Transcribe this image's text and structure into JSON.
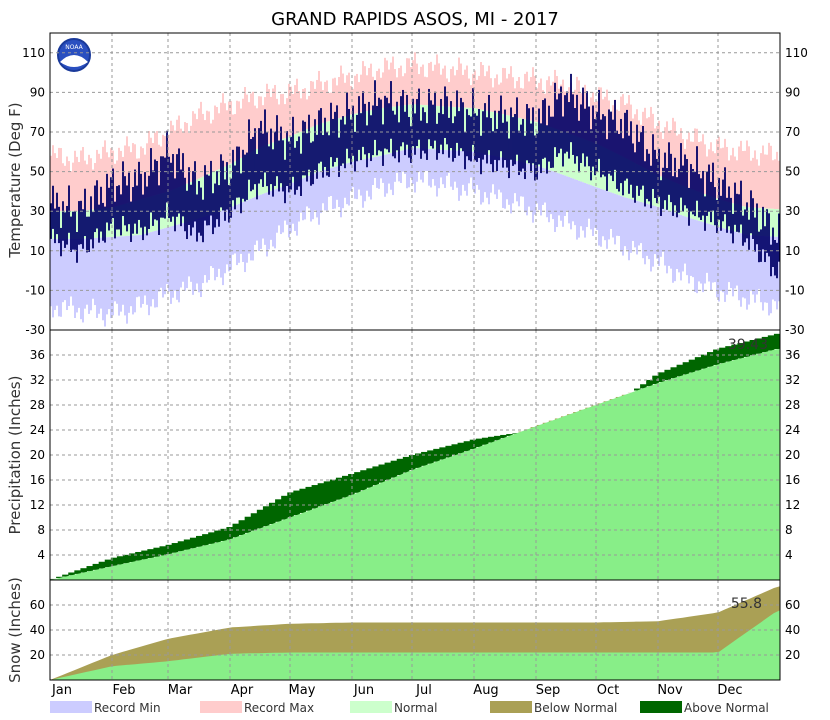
{
  "title": "GRAND RAPIDS ASOS, MI - 2017",
  "colors": {
    "record_min": "#ccccff",
    "record_max": "#ffcccc",
    "normal": "#ccffcc",
    "observed": "#000066",
    "below_normal": "#aaa055",
    "above_normal": "#006600",
    "normal_fill": "#88ee88"
  },
  "logo_text": "NOAA",
  "months": [
    "Jan",
    "Feb",
    "Mar",
    "Apr",
    "May",
    "Jun",
    "Jul",
    "Aug",
    "Sep",
    "Oct",
    "Nov",
    "Dec"
  ],
  "legend": [
    {
      "label": "Record Min",
      "color": "#ccccff"
    },
    {
      "label": "Record Max",
      "color": "#ffcccc"
    },
    {
      "label": "Normal",
      "color": "#ccffcc"
    },
    {
      "label": "Below Normal",
      "color": "#aaa055"
    },
    {
      "label": "Above Normal",
      "color": "#006600"
    }
  ],
  "chart_data": [
    {
      "type": "area",
      "panel": "temperature",
      "ylabel": "Temperature (Deg F)",
      "ylim": [
        -30,
        120
      ],
      "yticks": [
        -30,
        -10,
        10,
        30,
        50,
        70,
        90,
        110
      ],
      "grid": true,
      "x": [
        "Jan 1",
        "Jan 15",
        "Feb 1",
        "Feb 15",
        "Mar 1",
        "Mar 15",
        "Apr 1",
        "Apr 15",
        "May 1",
        "May 15",
        "Jun 1",
        "Jun 15",
        "Jul 1",
        "Jul 15",
        "Aug 1",
        "Aug 15",
        "Sep 1",
        "Sep 15",
        "Oct 1",
        "Oct 15",
        "Nov 1",
        "Nov 15",
        "Dec 1",
        "Dec 15",
        "Dec 31"
      ],
      "series": [
        {
          "name": "Record Max",
          "values": [
            58,
            56,
            60,
            62,
            70,
            78,
            84,
            88,
            90,
            94,
            98,
            102,
            104,
            102,
            100,
            98,
            96,
            94,
            88,
            84,
            74,
            68,
            62,
            60,
            58
          ]
        },
        {
          "name": "Normal High",
          "values": [
            30,
            30,
            32,
            36,
            40,
            46,
            54,
            62,
            68,
            74,
            79,
            82,
            84,
            83,
            82,
            79,
            75,
            70,
            64,
            57,
            48,
            42,
            36,
            32,
            31
          ]
        },
        {
          "name": "Normal Low",
          "values": [
            16,
            16,
            17,
            18,
            22,
            26,
            32,
            38,
            44,
            50,
            55,
            58,
            62,
            61,
            60,
            57,
            53,
            48,
            42,
            37,
            32,
            27,
            22,
            18,
            17
          ]
        },
        {
          "name": "Record Min",
          "values": [
            -18,
            -20,
            -22,
            -18,
            -12,
            -8,
            2,
            10,
            22,
            30,
            36,
            42,
            46,
            44,
            40,
            36,
            30,
            24,
            18,
            12,
            4,
            -4,
            -10,
            -14,
            -18
          ]
        },
        {
          "name": "Observed High",
          "values": [
            34,
            30,
            44,
            46,
            60,
            44,
            52,
            72,
            66,
            74,
            80,
            86,
            82,
            84,
            80,
            78,
            76,
            90,
            80,
            74,
            56,
            54,
            44,
            34,
            18
          ]
        },
        {
          "name": "Observed Low",
          "values": [
            16,
            10,
            22,
            20,
            28,
            18,
            30,
            44,
            40,
            50,
            56,
            60,
            60,
            62,
            56,
            54,
            50,
            60,
            50,
            42,
            34,
            30,
            24,
            16,
            -2
          ]
        }
      ]
    },
    {
      "type": "area",
      "panel": "precipitation",
      "ylabel": "Precipitation (Inches)",
      "ylim": [
        0,
        40
      ],
      "yticks": [
        4,
        8,
        12,
        16,
        20,
        24,
        28,
        32,
        36
      ],
      "grid": true,
      "annotation": "39.43",
      "x": [
        "Jan 1",
        "Feb 1",
        "Mar 1",
        "Apr 1",
        "May 1",
        "Jun 1",
        "Jul 1",
        "Aug 1",
        "Sep 1",
        "Oct 1",
        "Nov 1",
        "Dec 1",
        "Dec 31"
      ],
      "series": [
        {
          "name": "Normal",
          "values": [
            0.0,
            2.2,
            4.1,
            6.5,
            10.0,
            13.6,
            17.6,
            21.0,
            24.6,
            28.0,
            31.5,
            34.5,
            37.0
          ]
        },
        {
          "name": "Observed",
          "values": [
            0.0,
            3.5,
            5.6,
            8.5,
            14.0,
            17.0,
            20.0,
            22.5,
            24.0,
            26.0,
            33.0,
            37.0,
            39.43
          ]
        }
      ]
    },
    {
      "type": "area",
      "panel": "snow",
      "ylabel": "Snow (Inches)",
      "ylim": [
        0,
        80
      ],
      "yticks": [
        20,
        40,
        60
      ],
      "grid": true,
      "annotation": "55.8",
      "x": [
        "Jan 1",
        "Feb 1",
        "Mar 1",
        "Apr 1",
        "May 1",
        "Jun 1",
        "Jul 1",
        "Aug 1",
        "Sep 1",
        "Oct 1",
        "Nov 1",
        "Dec 1",
        "Dec 31"
      ],
      "series": [
        {
          "name": "Normal",
          "values": [
            0,
            20,
            33,
            42,
            45,
            46,
            46,
            46,
            46,
            46,
            47,
            54,
            75
          ]
        },
        {
          "name": "Observed",
          "values": [
            0,
            11,
            15,
            21,
            22,
            22,
            22,
            22,
            22,
            22,
            22,
            22,
            55.8
          ]
        }
      ]
    }
  ]
}
